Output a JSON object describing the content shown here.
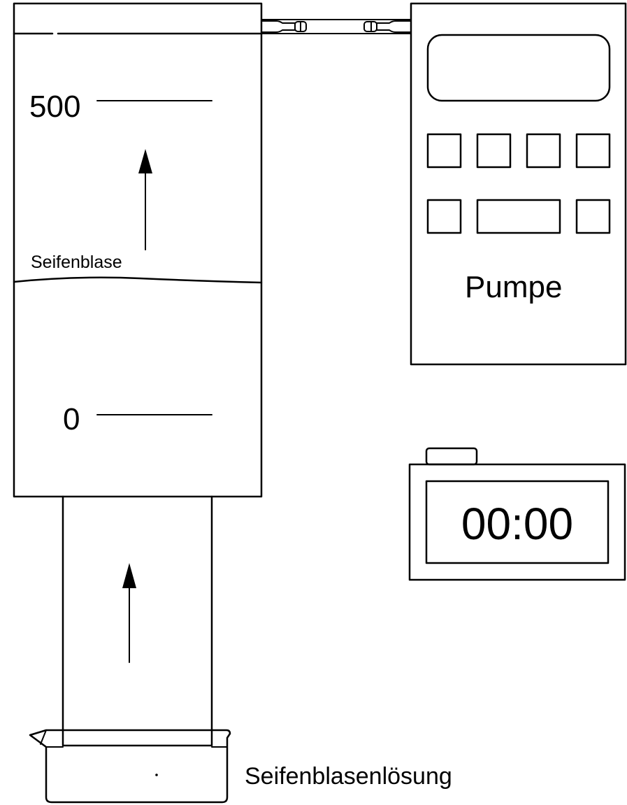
{
  "burette": {
    "mark_upper_label": "500",
    "mark_lower_label": "0",
    "bubble_label": "Seifenblase"
  },
  "pump": {
    "label": "Pumpe"
  },
  "timer": {
    "display": "00:00"
  },
  "beaker": {
    "label": "Seifenblasenlösung"
  }
}
